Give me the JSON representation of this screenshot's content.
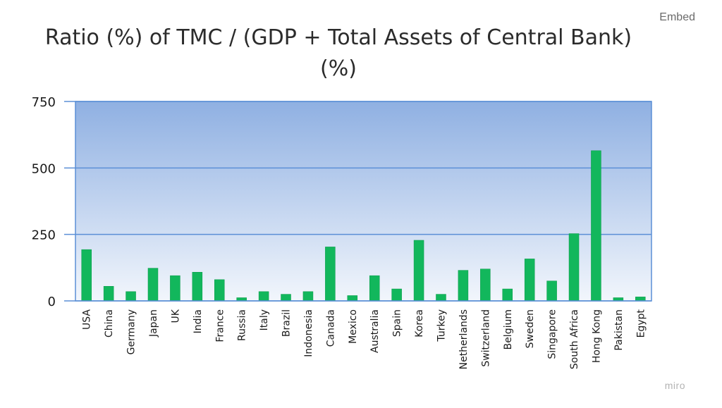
{
  "embed_label": "Embed",
  "watermark": "miro",
  "colors": {
    "bar": "#12b75c",
    "bar_stroke": "#0b9a4a",
    "grid": "#5b8fd6",
    "plot_bg_top": "#8fb0e2",
    "plot_bg_bottom": "#f2f6fc",
    "axis_text": "#1a1a1a"
  },
  "chart_data": {
    "type": "bar",
    "title": "Ratio (%) of TMC / (GDP + Total Assets of Central Bank) (%)",
    "xlabel": "",
    "ylabel": "",
    "ylim": [
      0,
      750
    ],
    "yticks": [
      0,
      250,
      500,
      750
    ],
    "grid": true,
    "legend": "none",
    "categories": [
      "USA",
      "China",
      "Germany",
      "Japan",
      "UK",
      "India",
      "France",
      "Russia",
      "Italy",
      "Brazil",
      "Indonesia",
      "Canada",
      "Mexico",
      "Australia",
      "Spain",
      "Korea",
      "Turkey",
      "Netherlands",
      "Switzerland",
      "Belgium",
      "Sweden",
      "Singapore",
      "South Africa",
      "Hong Kong",
      "Pakistan",
      "Egypt"
    ],
    "values": [
      193,
      55,
      35,
      123,
      95,
      108,
      80,
      12,
      35,
      25,
      35,
      203,
      20,
      95,
      45,
      228,
      25,
      115,
      120,
      45,
      158,
      75,
      253,
      565,
      12,
      15
    ]
  }
}
